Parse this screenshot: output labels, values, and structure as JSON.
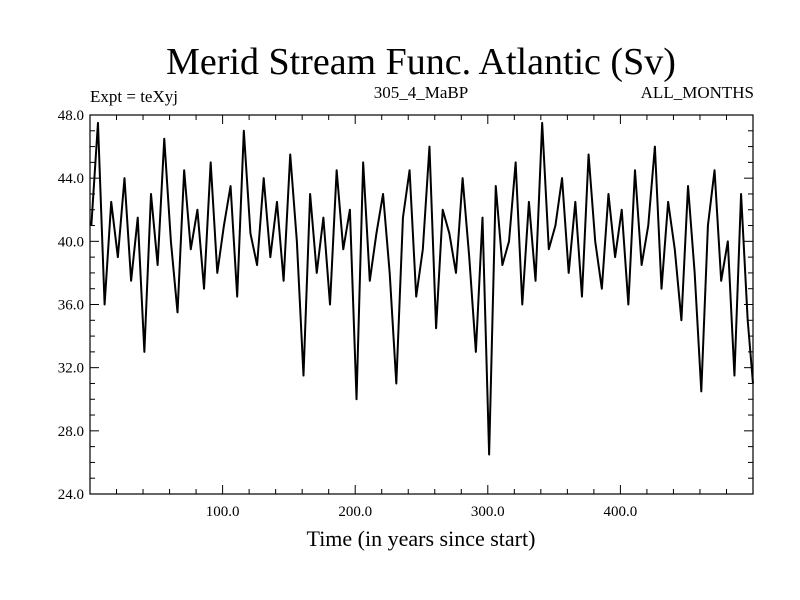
{
  "chart_data": {
    "type": "line",
    "title": "Merid Stream Func. Atlantic (Sv)",
    "subtitle_left": "Expt = teXyj",
    "subtitle_center": "305_4_MaBP",
    "subtitle_right": "ALL_MONTHS",
    "xlabel": "Time (in years since start)",
    "ylabel": "",
    "xlim": [
      0,
      500
    ],
    "ylim": [
      24,
      48
    ],
    "x_ticks": [
      100,
      200,
      300,
      400
    ],
    "x_tick_labels": [
      "100.0",
      "200.0",
      "300.0",
      "400.0"
    ],
    "y_ticks": [
      24,
      28,
      32,
      36,
      40,
      44,
      48
    ],
    "y_tick_labels": [
      "24.0",
      "28.0",
      "32.0",
      "36.0",
      "40.0",
      "44.0",
      "48.0"
    ],
    "grid": false,
    "series": [
      {
        "color": "#000000",
        "x": [
          1,
          6,
          11,
          16,
          21,
          26,
          31,
          36,
          41,
          46,
          51,
          56,
          61,
          66,
          71,
          76,
          81,
          86,
          91,
          96,
          101,
          106,
          111,
          116,
          121,
          126,
          131,
          136,
          141,
          146,
          151,
          156,
          161,
          166,
          171,
          176,
          181,
          186,
          191,
          196,
          201,
          206,
          211,
          216,
          221,
          226,
          231,
          236,
          241,
          246,
          251,
          256,
          261,
          266,
          271,
          276,
          281,
          286,
          291,
          296,
          301,
          306,
          311,
          316,
          321,
          326,
          331,
          336,
          341,
          346,
          351,
          356,
          361,
          366,
          371,
          376,
          381,
          386,
          391,
          396,
          401,
          406,
          411,
          416,
          421,
          426,
          431,
          436,
          441,
          446,
          451,
          456,
          461,
          466,
          471,
          476,
          481,
          486,
          491,
          496,
          500
        ],
        "y": [
          41.0,
          47.5,
          36.0,
          42.5,
          39.0,
          44.0,
          37.5,
          41.5,
          33.0,
          43.0,
          38.5,
          46.5,
          40.0,
          35.5,
          44.5,
          39.5,
          42.0,
          37.0,
          45.0,
          38.0,
          41.0,
          43.5,
          36.5,
          47.0,
          40.5,
          38.5,
          44.0,
          39.0,
          42.5,
          37.5,
          45.5,
          40.0,
          31.5,
          43.0,
          38.0,
          41.5,
          36.0,
          44.5,
          39.5,
          42.0,
          30.0,
          45.0,
          37.5,
          40.5,
          43.0,
          38.0,
          31.0,
          41.5,
          44.5,
          36.5,
          39.5,
          46.0,
          34.5,
          42.0,
          40.5,
          38.0,
          44.0,
          39.0,
          33.0,
          41.5,
          26.5,
          43.5,
          38.5,
          40.0,
          45.0,
          36.0,
          42.5,
          37.5,
          47.5,
          39.5,
          41.0,
          44.0,
          38.0,
          42.5,
          36.5,
          45.5,
          40.0,
          37.0,
          43.0,
          39.0,
          42.0,
          36.0,
          44.5,
          38.5,
          41.0,
          46.0,
          37.0,
          42.5,
          39.5,
          35.0,
          43.5,
          38.0,
          30.5,
          41.0,
          44.5,
          37.5,
          40.0,
          31.5,
          43.0,
          35.0,
          31.0
        ]
      }
    ]
  }
}
